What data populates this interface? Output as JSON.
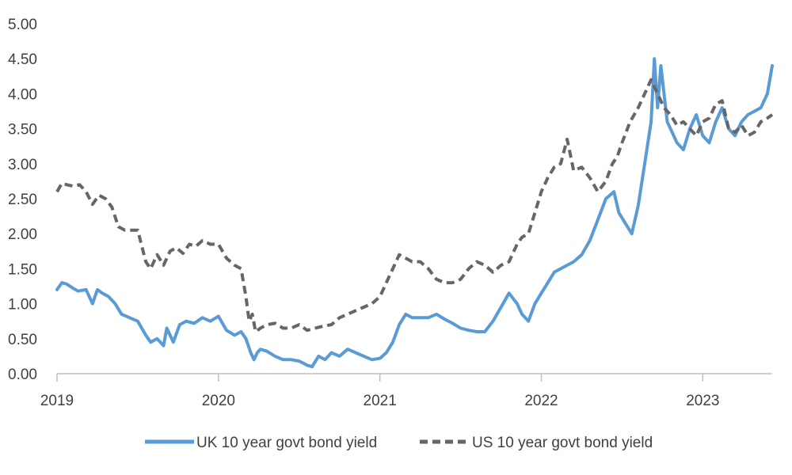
{
  "colors": {
    "uk": "#5B9BD5",
    "us": "#666666",
    "axis": "#BFBFBF",
    "text": "#404040"
  },
  "chart_data": {
    "type": "line",
    "title": "",
    "xlabel": "",
    "ylabel": "",
    "xlim": [
      2019.0,
      2023.43
    ],
    "ylim": [
      0,
      5
    ],
    "grid": false,
    "legend_position": "bottom",
    "y_ticks": [
      "0.00",
      "0.50",
      "1.00",
      "1.50",
      "2.00",
      "2.50",
      "3.00",
      "3.50",
      "4.00",
      "4.50",
      "5.00"
    ],
    "x_ticks": [
      "2019",
      "2020",
      "2021",
      "2022",
      "2023"
    ],
    "series": [
      {
        "name": "UK 10 year govt bond yield",
        "style": "solid",
        "x": [
          2019.0,
          2019.03,
          2019.06,
          2019.1,
          2019.13,
          2019.18,
          2019.22,
          2019.25,
          2019.28,
          2019.32,
          2019.36,
          2019.4,
          2019.45,
          2019.5,
          2019.55,
          2019.58,
          2019.62,
          2019.66,
          2019.68,
          2019.72,
          2019.76,
          2019.8,
          2019.85,
          2019.9,
          2019.95,
          2020.0,
          2020.05,
          2020.1,
          2020.14,
          2020.17,
          2020.2,
          2020.22,
          2020.24,
          2020.26,
          2020.3,
          2020.35,
          2020.4,
          2020.45,
          2020.5,
          2020.55,
          2020.58,
          2020.62,
          2020.66,
          2020.7,
          2020.75,
          2020.8,
          2020.85,
          2020.9,
          2020.95,
          2021.0,
          2021.04,
          2021.08,
          2021.12,
          2021.16,
          2021.2,
          2021.25,
          2021.3,
          2021.35,
          2021.4,
          2021.45,
          2021.5,
          2021.55,
          2021.6,
          2021.65,
          2021.7,
          2021.75,
          2021.8,
          2021.85,
          2021.88,
          2021.92,
          2021.96,
          2022.0,
          2022.04,
          2022.08,
          2022.12,
          2022.16,
          2022.2,
          2022.25,
          2022.3,
          2022.35,
          2022.4,
          2022.45,
          2022.48,
          2022.52,
          2022.56,
          2022.6,
          2022.64,
          2022.68,
          2022.7,
          2022.72,
          2022.74,
          2022.76,
          2022.78,
          2022.8,
          2022.84,
          2022.88,
          2022.92,
          2022.96,
          2023.0,
          2023.04,
          2023.08,
          2023.12,
          2023.16,
          2023.2,
          2023.24,
          2023.28,
          2023.32,
          2023.36,
          2023.4,
          2023.43
        ],
        "y": [
          1.2,
          1.3,
          1.28,
          1.22,
          1.18,
          1.2,
          1.0,
          1.2,
          1.15,
          1.1,
          1.0,
          0.85,
          0.8,
          0.75,
          0.55,
          0.45,
          0.5,
          0.4,
          0.65,
          0.45,
          0.7,
          0.75,
          0.72,
          0.8,
          0.75,
          0.82,
          0.62,
          0.55,
          0.6,
          0.5,
          0.3,
          0.2,
          0.3,
          0.35,
          0.32,
          0.25,
          0.2,
          0.2,
          0.18,
          0.12,
          0.1,
          0.25,
          0.2,
          0.3,
          0.25,
          0.35,
          0.3,
          0.25,
          0.2,
          0.22,
          0.3,
          0.45,
          0.7,
          0.85,
          0.8,
          0.8,
          0.8,
          0.85,
          0.78,
          0.72,
          0.65,
          0.62,
          0.6,
          0.6,
          0.75,
          0.95,
          1.15,
          1.0,
          0.85,
          0.75,
          1.0,
          1.15,
          1.3,
          1.45,
          1.5,
          1.55,
          1.6,
          1.7,
          1.9,
          2.2,
          2.5,
          2.6,
          2.3,
          2.15,
          2.0,
          2.4,
          3.0,
          3.6,
          4.5,
          3.8,
          4.4,
          4.0,
          3.6,
          3.5,
          3.3,
          3.2,
          3.5,
          3.7,
          3.4,
          3.3,
          3.6,
          3.8,
          3.5,
          3.4,
          3.6,
          3.7,
          3.75,
          3.8,
          4.0,
          4.4
        ]
      },
      {
        "name": "US 10 year govt bond yield",
        "style": "dashed",
        "x": [
          2019.0,
          2019.03,
          2019.06,
          2019.1,
          2019.14,
          2019.18,
          2019.22,
          2019.26,
          2019.3,
          2019.34,
          2019.38,
          2019.42,
          2019.46,
          2019.5,
          2019.55,
          2019.58,
          2019.62,
          2019.66,
          2019.7,
          2019.74,
          2019.78,
          2019.82,
          2019.86,
          2019.9,
          2019.95,
          2020.0,
          2020.05,
          2020.1,
          2020.14,
          2020.17,
          2020.19,
          2020.21,
          2020.23,
          2020.26,
          2020.3,
          2020.35,
          2020.4,
          2020.45,
          2020.5,
          2020.55,
          2020.6,
          2020.65,
          2020.7,
          2020.75,
          2020.8,
          2020.85,
          2020.9,
          2020.95,
          2021.0,
          2021.04,
          2021.08,
          2021.12,
          2021.16,
          2021.2,
          2021.25,
          2021.3,
          2021.35,
          2021.4,
          2021.45,
          2021.5,
          2021.55,
          2021.6,
          2021.65,
          2021.7,
          2021.75,
          2021.8,
          2021.85,
          2021.88,
          2021.92,
          2021.96,
          2022.0,
          2022.04,
          2022.08,
          2022.12,
          2022.16,
          2022.2,
          2022.25,
          2022.3,
          2022.35,
          2022.4,
          2022.44,
          2022.47,
          2022.5,
          2022.55,
          2022.6,
          2022.64,
          2022.68,
          2022.72,
          2022.76,
          2022.8,
          2022.84,
          2022.88,
          2022.92,
          2022.96,
          2023.0,
          2023.04,
          2023.08,
          2023.12,
          2023.16,
          2023.2,
          2023.24,
          2023.28,
          2023.32,
          2023.36,
          2023.4,
          2023.43
        ],
        "y": [
          2.6,
          2.72,
          2.7,
          2.68,
          2.7,
          2.6,
          2.42,
          2.55,
          2.5,
          2.38,
          2.1,
          2.05,
          2.05,
          2.05,
          1.6,
          1.5,
          1.7,
          1.55,
          1.75,
          1.8,
          1.72,
          1.85,
          1.82,
          1.9,
          1.85,
          1.85,
          1.65,
          1.55,
          1.5,
          1.1,
          0.75,
          0.85,
          0.6,
          0.65,
          0.7,
          0.72,
          0.65,
          0.65,
          0.7,
          0.62,
          0.65,
          0.68,
          0.7,
          0.8,
          0.85,
          0.9,
          0.95,
          1.0,
          1.1,
          1.3,
          1.5,
          1.7,
          1.65,
          1.6,
          1.6,
          1.5,
          1.35,
          1.3,
          1.3,
          1.35,
          1.5,
          1.6,
          1.55,
          1.45,
          1.55,
          1.6,
          1.85,
          1.95,
          2.0,
          2.3,
          2.6,
          2.8,
          2.95,
          3.0,
          3.35,
          2.9,
          2.95,
          2.8,
          2.6,
          2.75,
          3.0,
          3.1,
          3.3,
          3.6,
          3.8,
          4.0,
          4.2,
          4.0,
          3.8,
          3.7,
          3.55,
          3.6,
          3.5,
          3.4,
          3.6,
          3.65,
          3.85,
          3.9,
          3.5,
          3.45,
          3.55,
          3.4,
          3.45,
          3.6,
          3.65,
          3.7
        ]
      }
    ]
  }
}
